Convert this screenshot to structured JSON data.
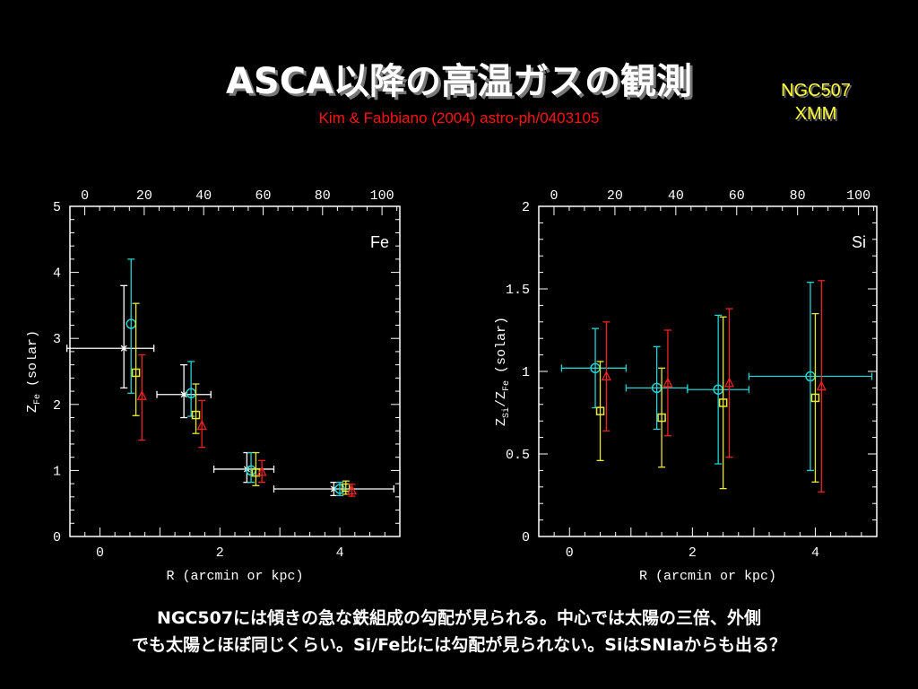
{
  "slide": {
    "title": "ASCA以降の高温ガスの観測",
    "subtitle": "Kim & Fabbiano (2004) astro-ph/0403105",
    "target_line1": "NGC507",
    "target_line2": "XMM",
    "caption_line1": "NGC507には傾きの急な鉄組成の勾配が見られる。中心では太陽の三倍、外側",
    "caption_line2": "でも太陽とほぼ同じくらい。Si/Fe比には勾配が見られない。SiはSNIaからも出る？"
  },
  "colors": {
    "white": "#ffffff",
    "cyan": "#22d3d3",
    "yellow": "#e8e833",
    "red": "#ee2222"
  },
  "chart_data": [
    {
      "type": "scatter",
      "label": "Fe",
      "xlabel": "R (arcmin or kpc)",
      "ylabel": "Z_Fe (solar)",
      "ylabel_main": "Z",
      "ylabel_sub": "Fe",
      "ylabel_unit": "(solar)",
      "xlim": [
        -0.5,
        5.0
      ],
      "ylim": [
        0,
        5
      ],
      "xticks": [
        "0",
        "2",
        "4"
      ],
      "xtick_values": [
        0,
        2,
        4
      ],
      "yticks": [
        "0",
        "1",
        "2",
        "3",
        "4",
        "5"
      ],
      "ytick_values": [
        0,
        1,
        2,
        3,
        4,
        5
      ],
      "top_axis": {
        "xlim": [
          -5,
          106
        ],
        "ticks": [
          "0",
          "20",
          "40",
          "60",
          "80",
          "100"
        ],
        "tick_values": [
          0,
          20,
          40,
          60,
          80,
          100
        ]
      },
      "series": [
        {
          "color": "white",
          "marker": "x",
          "points": [
            {
              "x": 0.4,
              "y": 2.85,
              "xl": 0.95,
              "xh": 0.5,
              "yl": 0.6,
              "yh": 0.95
            },
            {
              "x": 1.4,
              "y": 2.15,
              "xl": 0.45,
              "xh": 0.45,
              "yl": 0.35,
              "yh": 0.45
            },
            {
              "x": 2.45,
              "y": 1.02,
              "xl": 0.55,
              "xh": 0.45,
              "yl": 0.2,
              "yh": 0.25
            },
            {
              "x": 3.9,
              "y": 0.72,
              "xl": 1.0,
              "xh": 1.0,
              "yl": 0.1,
              "yh": 0.1
            }
          ]
        },
        {
          "color": "cyan",
          "marker": "circle",
          "points": [
            {
              "x": 0.52,
              "y": 3.22,
              "yl": 1.05,
              "yh": 0.98
            },
            {
              "x": 1.52,
              "y": 2.17,
              "yl": 0.35,
              "yh": 0.48
            },
            {
              "x": 2.52,
              "y": 1.0,
              "yl": 0.18,
              "yh": 0.27
            },
            {
              "x": 4.0,
              "y": 0.72,
              "yl": 0.1,
              "yh": 0.1
            }
          ]
        },
        {
          "color": "yellow",
          "marker": "square",
          "points": [
            {
              "x": 0.6,
              "y": 2.48,
              "yl": 0.65,
              "yh": 1.05
            },
            {
              "x": 1.6,
              "y": 1.84,
              "yl": 0.28,
              "yh": 0.47
            },
            {
              "x": 2.6,
              "y": 0.97,
              "yl": 0.2,
              "yh": 0.3
            },
            {
              "x": 4.1,
              "y": 0.74,
              "yl": 0.1,
              "yh": 0.1
            }
          ]
        },
        {
          "color": "red",
          "marker": "triangle",
          "points": [
            {
              "x": 0.7,
              "y": 2.13,
              "yl": 0.67,
              "yh": 0.62
            },
            {
              "x": 1.7,
              "y": 1.68,
              "yl": 0.33,
              "yh": 0.38
            },
            {
              "x": 2.7,
              "y": 0.98,
              "yl": 0.16,
              "yh": 0.17
            },
            {
              "x": 4.2,
              "y": 0.7,
              "yl": 0.09,
              "yh": 0.09
            }
          ]
        }
      ]
    },
    {
      "type": "scatter",
      "label": "Si",
      "xlabel": "R (arcmin or kpc)",
      "ylabel": "Z_Si/Z_Fe (solar)",
      "ylabel_main": "Z",
      "ylabel_sub": "Si",
      "ylabel_main2": "/Z",
      "ylabel_sub2": "Fe",
      "ylabel_unit": "(solar)",
      "xlim": [
        -0.5,
        5.0
      ],
      "ylim": [
        0,
        2
      ],
      "xticks": [
        "0",
        "2",
        "4"
      ],
      "xtick_values": [
        0,
        2,
        4
      ],
      "yticks": [
        "0",
        "0.5",
        "1",
        "1.5",
        "2"
      ],
      "ytick_values": [
        0,
        0.5,
        1,
        1.5,
        2
      ],
      "top_axis": {
        "xlim": [
          -5,
          106
        ],
        "ticks": [
          "0",
          "20",
          "40",
          "60",
          "80",
          "100"
        ],
        "tick_values": [
          0,
          20,
          40,
          60,
          80,
          100
        ]
      },
      "series": [
        {
          "color": "cyan",
          "marker": "circle",
          "points": [
            {
              "x": 0.42,
              "y": 1.02,
              "xl": 0.55,
              "xh": 0.5,
              "yl": 0.24,
              "yh": 0.24
            },
            {
              "x": 1.42,
              "y": 0.9,
              "xl": 0.5,
              "xh": 0.5,
              "yl": 0.25,
              "yh": 0.25
            },
            {
              "x": 2.42,
              "y": 0.89,
              "xl": 0.5,
              "xh": 0.5,
              "yl": 0.45,
              "yh": 0.45
            },
            {
              "x": 3.92,
              "y": 0.97,
              "xl": 1.0,
              "xh": 1.0,
              "yl": 0.57,
              "yh": 0.57
            }
          ]
        },
        {
          "color": "yellow",
          "marker": "square",
          "points": [
            {
              "x": 0.5,
              "y": 0.76,
              "yl": 0.3,
              "yh": 0.3
            },
            {
              "x": 1.5,
              "y": 0.72,
              "yl": 0.3,
              "yh": 0.3
            },
            {
              "x": 2.5,
              "y": 0.81,
              "yl": 0.52,
              "yh": 0.52
            },
            {
              "x": 4.0,
              "y": 0.84,
              "yl": 0.51,
              "yh": 0.51
            }
          ]
        },
        {
          "color": "red",
          "marker": "triangle",
          "points": [
            {
              "x": 0.6,
              "y": 0.97,
              "yl": 0.33,
              "yh": 0.33
            },
            {
              "x": 1.6,
              "y": 0.93,
              "yl": 0.32,
              "yh": 0.32
            },
            {
              "x": 2.6,
              "y": 0.93,
              "yl": 0.45,
              "yh": 0.45
            },
            {
              "x": 4.1,
              "y": 0.91,
              "yl": 0.64,
              "yh": 0.64
            }
          ]
        }
      ]
    }
  ]
}
